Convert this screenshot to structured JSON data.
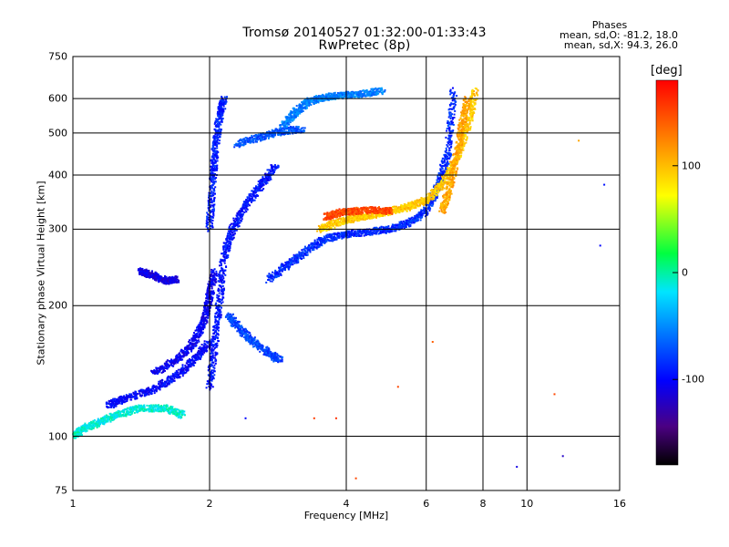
{
  "chart_data": {
    "type": "scatter",
    "title": "Tromsø 20140527 01:32:00-01:33:43",
    "subtitle": "RwPretec (8p)",
    "xlabel": "Frequency [MHz]",
    "ylabel": "Stationary phase Virtual Height [km]",
    "x_scale": "log",
    "y_scale": "log",
    "xlim": [
      1,
      16
    ],
    "ylim": [
      75,
      750
    ],
    "x_ticks": [
      "1",
      "2",
      "4",
      "6",
      "8",
      "10",
      "16"
    ],
    "x_tick_values": [
      1,
      2,
      4,
      6,
      8,
      10,
      16
    ],
    "y_ticks": [
      "75",
      "100",
      "200",
      "300",
      "400",
      "500",
      "600",
      "750"
    ],
    "y_tick_values": [
      75,
      100,
      200,
      300,
      400,
      500,
      600,
      750
    ],
    "grid": true,
    "colorbar": {
      "unit": "[deg]",
      "range": [
        -180,
        180
      ],
      "ticks": [
        "100",
        "0",
        "-100"
      ],
      "tick_values": [
        100,
        0,
        -100
      ]
    },
    "phase_stats": {
      "header": "Phases",
      "line_o": "mean, sd,O: -81.2, 18.0",
      "line_x": "mean, sd,X:  94.3, 26.0"
    },
    "traces": [
      {
        "x": [
          1.0,
          1.05,
          1.15,
          1.25,
          1.4,
          1.6,
          1.75
        ],
        "y": [
          100,
          104,
          108,
          112,
          116,
          116,
          112
        ],
        "phase": -10
      },
      {
        "x": [
          1.2,
          1.3,
          1.5,
          1.7,
          1.85,
          2.0
        ],
        "y": [
          118,
          122,
          128,
          138,
          150,
          165
        ],
        "phase": -100
      },
      {
        "x": [
          1.5,
          1.7,
          1.85,
          1.95,
          2.0,
          2.05
        ],
        "y": [
          140,
          150,
          165,
          185,
          210,
          240
        ],
        "phase": -105
      },
      {
        "x": [
          1.4,
          1.5,
          1.6,
          1.7
        ],
        "y": [
          240,
          235,
          228,
          230
        ],
        "phase": -110
      },
      {
        "x": [
          2.0,
          2.05,
          2.1,
          2.15,
          2.25,
          2.4,
          2.6,
          2.8
        ],
        "y": [
          130,
          160,
          200,
          260,
          300,
          340,
          380,
          420
        ],
        "phase": -95
      },
      {
        "x": [
          2.0,
          2.03,
          2.06,
          2.1,
          2.15
        ],
        "y": [
          300,
          380,
          460,
          540,
          600
        ],
        "phase": -90
      },
      {
        "x": [
          2.2,
          2.35,
          2.5,
          2.7,
          2.85
        ],
        "y": [
          190,
          175,
          165,
          155,
          150
        ],
        "phase": -75
      },
      {
        "x": [
          2.3,
          2.6,
          2.9,
          3.2
        ],
        "y": [
          470,
          490,
          505,
          510
        ],
        "phase": -70
      },
      {
        "x": [
          2.9,
          3.1,
          3.3,
          3.6,
          3.9,
          4.3,
          4.8
        ],
        "y": [
          520,
          560,
          590,
          605,
          610,
          615,
          625
        ],
        "phase": -55
      },
      {
        "x": [
          2.7,
          3.0,
          3.3,
          3.6,
          4.0,
          4.5,
          5.0,
          5.5,
          6.0,
          6.4,
          6.7,
          6.9
        ],
        "y": [
          230,
          250,
          270,
          285,
          292,
          296,
          300,
          310,
          330,
          380,
          450,
          630
        ],
        "phase": -85
      },
      {
        "x": [
          3.5,
          3.8,
          4.2,
          4.6,
          5.0,
          5.5,
          6.0,
          6.5,
          7.0,
          7.4,
          7.7
        ],
        "y": [
          300,
          310,
          318,
          324,
          330,
          338,
          350,
          380,
          440,
          520,
          630
        ],
        "phase": 95
      },
      {
        "x": [
          3.6,
          3.9,
          4.2,
          4.6,
          5.0
        ],
        "y": [
          320,
          328,
          330,
          332,
          330
        ],
        "phase": 150
      },
      {
        "x": [
          6.5,
          6.8,
          7.0,
          7.2,
          7.4
        ],
        "y": [
          330,
          380,
          440,
          520,
          600
        ],
        "phase": 110
      }
    ],
    "scatter": [
      {
        "x": 2.4,
        "y": 110,
        "phase": -100
      },
      {
        "x": 3.4,
        "y": 110,
        "phase": 155
      },
      {
        "x": 3.8,
        "y": 110,
        "phase": 160
      },
      {
        "x": 4.2,
        "y": 80,
        "phase": 150
      },
      {
        "x": 5.2,
        "y": 130,
        "phase": 150
      },
      {
        "x": 6.2,
        "y": 165,
        "phase": 140
      },
      {
        "x": 9.5,
        "y": 85,
        "phase": -110
      },
      {
        "x": 12.0,
        "y": 90,
        "phase": -120
      },
      {
        "x": 14.5,
        "y": 275,
        "phase": -100
      },
      {
        "x": 14.8,
        "y": 380,
        "phase": -95
      },
      {
        "x": 13.0,
        "y": 480,
        "phase": 110
      },
      {
        "x": 11.5,
        "y": 125,
        "phase": 150
      }
    ]
  }
}
